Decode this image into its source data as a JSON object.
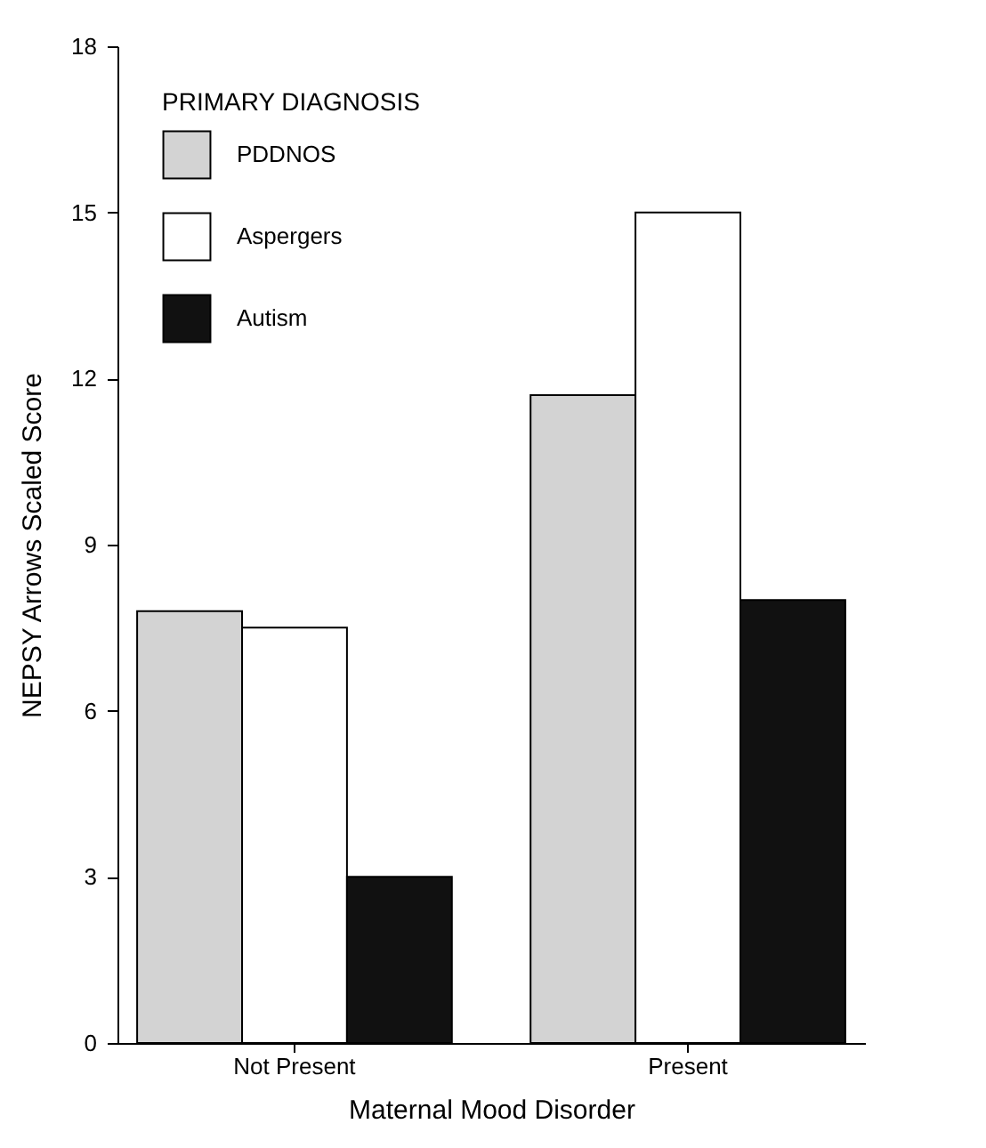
{
  "chart_data": {
    "type": "bar",
    "xlabel": "Maternal Mood Disorder",
    "ylabel": "NEPSY Arrows Scaled Score",
    "legend_title": "PRIMARY DIAGNOSIS",
    "categories": [
      "Not Present",
      "Present"
    ],
    "series": [
      {
        "name": "PDDNOS",
        "color": "#d3d3d3",
        "values": [
          7.8,
          11.7
        ]
      },
      {
        "name": "Aspergers",
        "color": "#ffffff",
        "values": [
          7.5,
          15.0
        ]
      },
      {
        "name": "Autism",
        "color": "#111111",
        "values": [
          3.0,
          8.0
        ]
      }
    ],
    "ylim": [
      0,
      18
    ],
    "yticks": [
      0,
      3,
      6,
      9,
      12,
      15,
      18
    ],
    "grid": false,
    "legend": "top left"
  }
}
